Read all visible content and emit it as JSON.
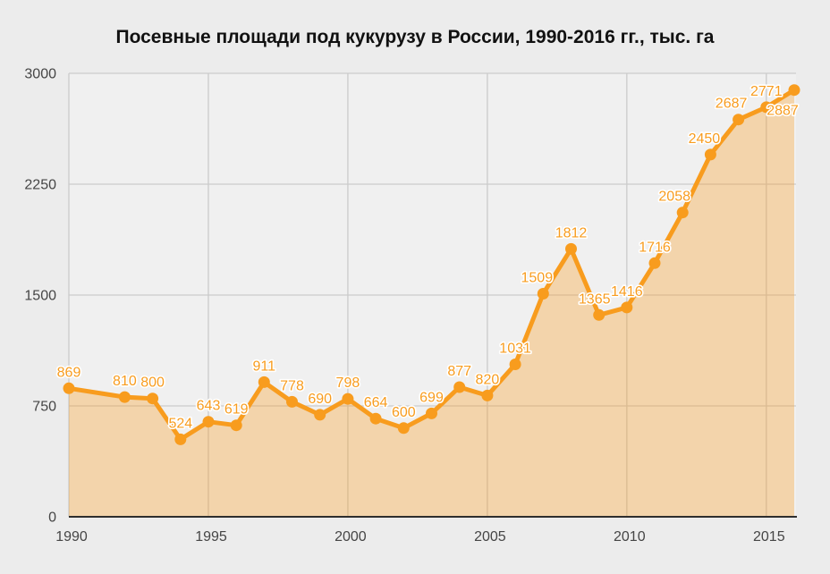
{
  "page": {
    "title": "Посевные площади под кукурузу в России, 1990-2016 гг., тыс. га"
  },
  "colors": {
    "page_bg": "#ECECEC",
    "plot_bg": "#F0F0F0",
    "grid": "#CBCBCB",
    "axis_line": "#2E2E2E",
    "axis_text": "#454545",
    "line": "#F89C1E",
    "marker": "#F89C1E",
    "area_fill": "rgba(248,156,30,0.33)",
    "data_label": "#F89C1E",
    "data_label_halo": "#FFFFFF",
    "title_text": "#111111"
  },
  "chart_data": {
    "type": "area",
    "title": "Посевные площади под кукурузу в России, 1990-2016 гг., тыс. га",
    "x": [
      1990,
      1992,
      1993,
      1994,
      1995,
      1996,
      1997,
      1998,
      1999,
      2000,
      2001,
      2002,
      2003,
      2004,
      2005,
      2006,
      2007,
      2008,
      2009,
      2010,
      2011,
      2012,
      2013,
      2014,
      2015,
      2016
    ],
    "values": [
      869,
      810,
      800,
      524,
      643,
      619,
      911,
      778,
      690,
      798,
      664,
      600,
      699,
      877,
      820,
      1031,
      1509,
      1812,
      1365,
      1416,
      1716,
      2058,
      2450,
      2687,
      2771,
      2887
    ],
    "missing_years": [
      1991
    ],
    "xlabel": "",
    "ylabel": "",
    "xlim": [
      1990,
      2016
    ],
    "ylim": [
      0,
      3000
    ],
    "x_ticks": [
      1990,
      1995,
      2000,
      2005,
      2010,
      2015
    ],
    "y_ticks": [
      0,
      750,
      1500,
      2250,
      3000
    ],
    "grid": true,
    "legend": "none",
    "data_labels": true,
    "series_name": "Посевные площади, тыс. га"
  }
}
